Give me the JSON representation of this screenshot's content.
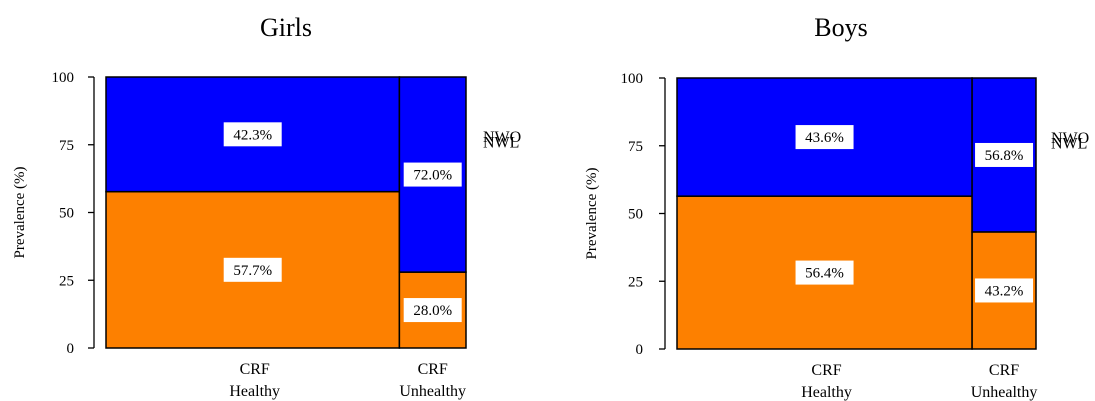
{
  "chart_data": [
    {
      "type": "mosaic",
      "title": "Girls",
      "ylabel": "Prevalence (%)",
      "ylim": [
        0,
        100
      ],
      "yticks": [
        "0",
        "25",
        "50",
        "75",
        "100"
      ],
      "categories": [
        {
          "line1": "CRF",
          "line2": "Healthy"
        },
        {
          "line1": "CRF",
          "line2": "Unhealthy"
        }
      ],
      "column_share": [
        0.815,
        0.185
      ],
      "series": [
        {
          "name": "NWL",
          "color": "#fd8000",
          "values": [
            57.7,
            28.0
          ],
          "labels": [
            "57.7%",
            "28.0%"
          ]
        },
        {
          "name": "NWO",
          "color": "#0000ff",
          "values": [
            42.3,
            72.0
          ],
          "labels": [
            "42.3%",
            "72.0%"
          ]
        }
      ]
    },
    {
      "type": "mosaic",
      "title": "Boys",
      "ylabel": "Prevalence (%)",
      "ylim": [
        0,
        100
      ],
      "yticks": [
        "0",
        "25",
        "50",
        "75",
        "100"
      ],
      "categories": [
        {
          "line1": "CRF",
          "line2": "Healthy"
        },
        {
          "line1": "CRF",
          "line2": "Unhealthy"
        }
      ],
      "column_share": [
        0.822,
        0.178
      ],
      "series": [
        {
          "name": "NWL",
          "color": "#fd8000",
          "values": [
            56.4,
            43.2
          ],
          "labels": [
            "56.4%",
            "43.2%"
          ]
        },
        {
          "name": "NWO",
          "color": "#0000ff",
          "values": [
            43.6,
            56.8
          ],
          "labels": [
            "43.6%",
            "56.8%"
          ]
        }
      ]
    }
  ]
}
